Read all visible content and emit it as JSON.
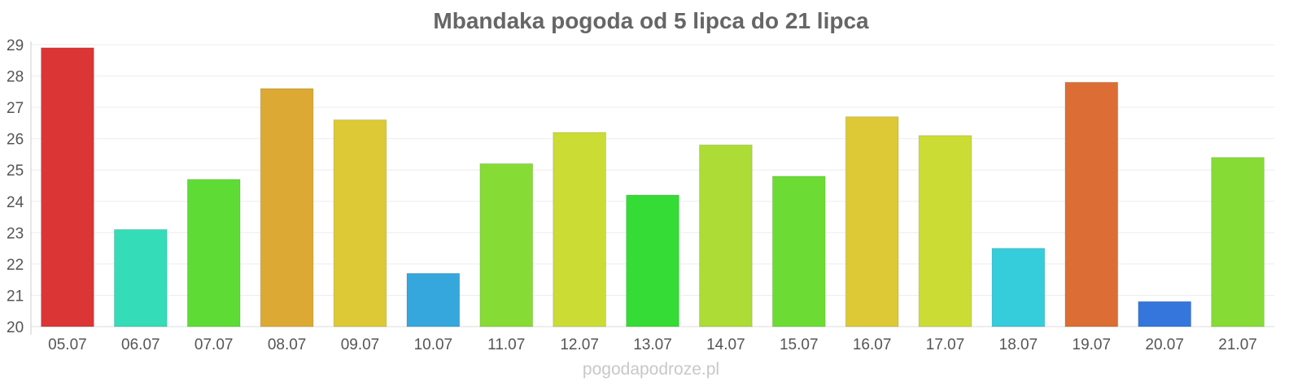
{
  "chart_data": {
    "type": "bar",
    "title": "Mbandaka pogoda od 5 lipca do 21 lipca",
    "xlabel": "",
    "ylabel": "",
    "ylim": [
      20,
      29
    ],
    "y_ticks": [
      20,
      21,
      22,
      23,
      24,
      25,
      26,
      27,
      28,
      29
    ],
    "grid": true,
    "legend": "none",
    "categories": [
      "05.07",
      "06.07",
      "07.07",
      "08.07",
      "09.07",
      "10.07",
      "11.07",
      "12.07",
      "13.07",
      "14.07",
      "15.07",
      "16.07",
      "17.07",
      "18.07",
      "19.07",
      "20.07",
      "21.07"
    ],
    "values": [
      28.9,
      23.1,
      24.7,
      27.6,
      26.6,
      21.7,
      25.2,
      26.2,
      24.2,
      25.8,
      24.8,
      26.7,
      26.1,
      22.5,
      27.8,
      20.8,
      25.4
    ],
    "colors": [
      "#dc3535",
      "#35dcb8",
      "#5edc35",
      "#dca935",
      "#dcc935",
      "#35a7dc",
      "#86dc35",
      "#cbdc35",
      "#35dc35",
      "#acdc35",
      "#6cdc35",
      "#dcc935",
      "#cbdc35",
      "#35ccdc",
      "#dc6e35",
      "#3576dc",
      "#86dc35"
    ]
  },
  "watermark": "pogodapodroze.pl"
}
